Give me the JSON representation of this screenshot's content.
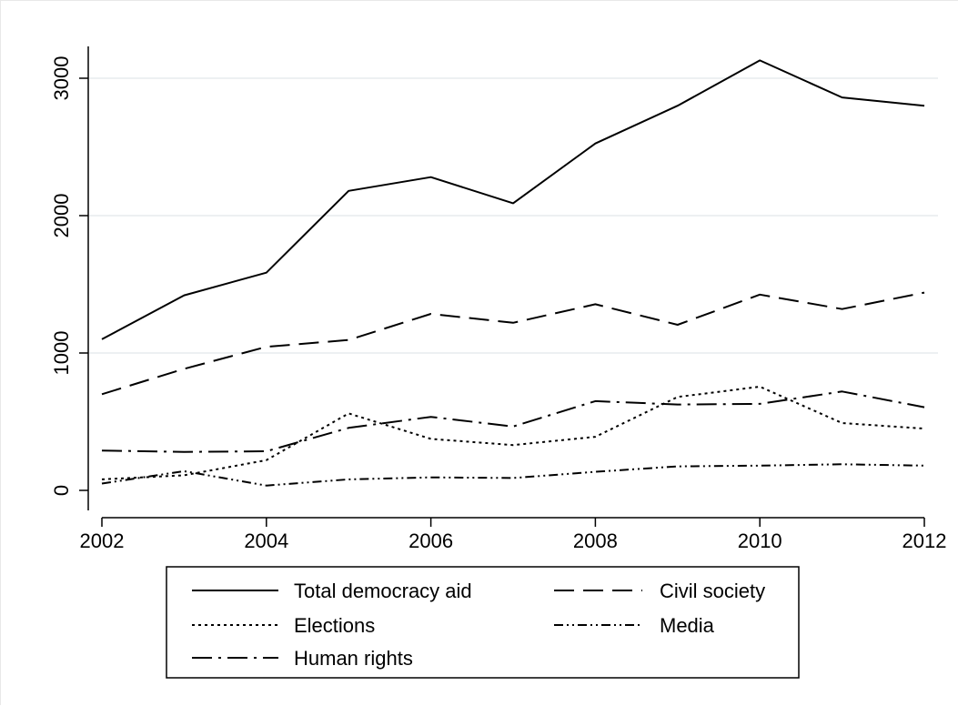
{
  "chart_data": {
    "type": "line",
    "title": "",
    "xlabel": "",
    "ylabel": "",
    "x": [
      2002,
      2003,
      2004,
      2005,
      2006,
      2007,
      2008,
      2009,
      2010,
      2011,
      2012
    ],
    "xticks": [
      2002,
      2004,
      2006,
      2008,
      2010,
      2012
    ],
    "yticks": [
      0,
      1000,
      2000,
      3000
    ],
    "xlim": [
      2002,
      2012
    ],
    "ylim": [
      0,
      3100
    ],
    "grid": "horizontal",
    "legend_position": "bottom",
    "series": [
      {
        "name": "Total democracy aid",
        "style": "solid",
        "values": [
          1100,
          1420,
          1585,
          2180,
          2280,
          2090,
          2525,
          2800,
          3130,
          2860,
          2800
        ]
      },
      {
        "name": "Civil society",
        "style": "dashed",
        "values": [
          700,
          885,
          1045,
          1095,
          1285,
          1220,
          1355,
          1205,
          1425,
          1320,
          1440
        ]
      },
      {
        "name": "Elections",
        "style": "dotted",
        "values": [
          80,
          110,
          220,
          560,
          375,
          330,
          390,
          680,
          755,
          490,
          450
        ]
      },
      {
        "name": "Media",
        "style": "dash-dot-dot",
        "values": [
          50,
          140,
          35,
          80,
          95,
          90,
          135,
          175,
          180,
          190,
          180
        ]
      },
      {
        "name": "Human rights",
        "style": "dash-dot",
        "values": [
          290,
          280,
          285,
          455,
          535,
          465,
          650,
          625,
          630,
          720,
          605
        ]
      }
    ],
    "colors": {
      "lines": "#000000",
      "grid": "#e7ecee",
      "axis": "#000000"
    }
  }
}
